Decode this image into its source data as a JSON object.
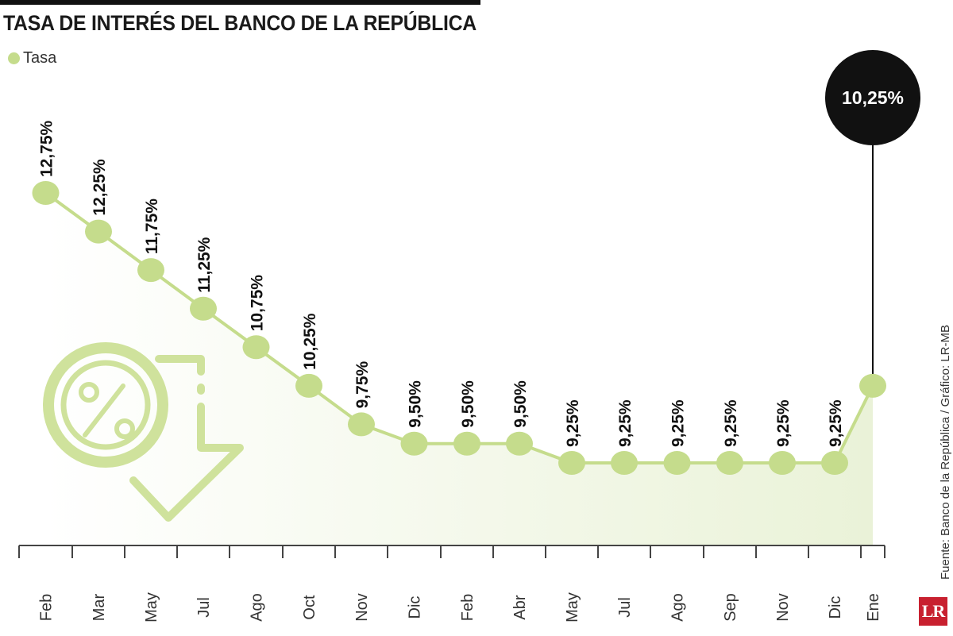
{
  "header": {
    "title": "TASA DE INTERÉS DEL BANCO DE LA REPÚBLICA",
    "legend_label": "Tasa",
    "source": "Fuente: Banco de la República / Gráfico: LR-MB",
    "logo_text": "LR"
  },
  "colors": {
    "series": "#c5dc8c",
    "line": "#c5dc8c",
    "axis": "#444444",
    "highlight": "#111111",
    "logo": "#c8202f"
  },
  "chart_data": {
    "type": "line",
    "title": "TASA DE INTERÉS DEL BANCO DE LA REPÚBLICA",
    "xlabel": "",
    "ylabel": "",
    "legend": "top-left",
    "grid": false,
    "ylim": [
      8,
      13
    ],
    "categories": [
      "Feb",
      "Mar",
      "May",
      "Jul",
      "Ago",
      "Oct",
      "Nov",
      "Dic",
      "Feb",
      "Abr",
      "May",
      "Jul",
      "Ago",
      "Sep",
      "Nov",
      "Dic",
      "Ene"
    ],
    "series": [
      {
        "name": "Tasa",
        "values": [
          12.75,
          12.25,
          11.75,
          11.25,
          10.75,
          10.25,
          9.75,
          9.5,
          9.5,
          9.5,
          9.25,
          9.25,
          9.25,
          9.25,
          9.25,
          9.25,
          10.25
        ]
      }
    ],
    "data_labels": [
      "12,75%",
      "12,25%",
      "11,75%",
      "11,25%",
      "10,75%",
      "10,25%",
      "9,75%",
      "9,50%",
      "9,50%",
      "9,50%",
      "9,25%",
      "9,25%",
      "9,25%",
      "9,25%",
      "9,25%",
      "9,25%",
      "10,25%"
    ],
    "highlight_index": 16,
    "highlight_label": "10,25%"
  },
  "icon": {
    "name": "percent-down-arrow-icon"
  }
}
